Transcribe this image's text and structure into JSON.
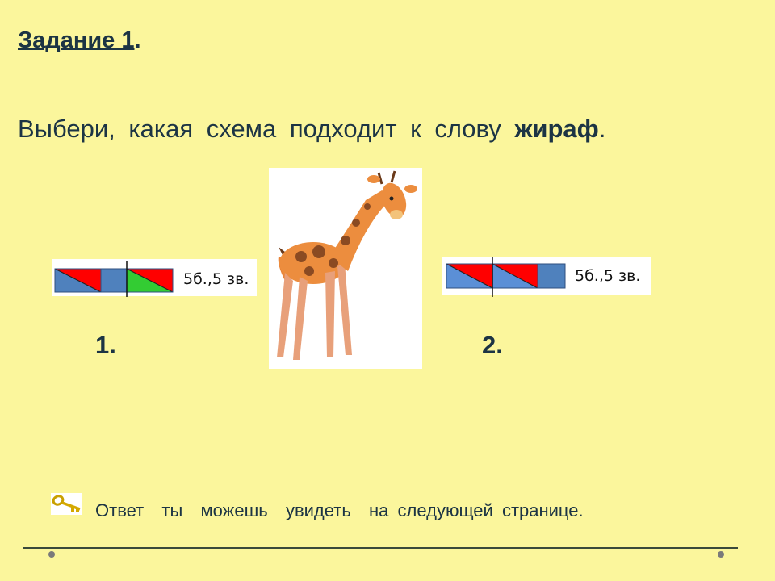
{
  "title": {
    "text": "Задание 1",
    "suffix": "."
  },
  "instruction": {
    "text": "Выбери, какая схема подходит к слову ",
    "word": "жираф",
    "suffix": "."
  },
  "schemes": [
    {
      "number": "1.",
      "label": "5б.,5 зв.",
      "segments": [
        "blue-red-diagonal",
        "blue",
        "green-red-diagonal"
      ],
      "divider_after": 2
    },
    {
      "number": "2.",
      "label": "5б.,5 зв.",
      "segments": [
        "blue-red-diagonal",
        "blue-red-diagonal",
        "blue"
      ],
      "divider_after": 1
    }
  ],
  "colors": {
    "background": "#fbf69c",
    "text": "#1c3444",
    "blue": "#4f81bd",
    "red": "#ff0000",
    "green": "#33cc33"
  },
  "answer_hint": {
    "icon": "key-icon",
    "text": "Ответ  ты  можешь  увидеть  на следующей странице."
  }
}
